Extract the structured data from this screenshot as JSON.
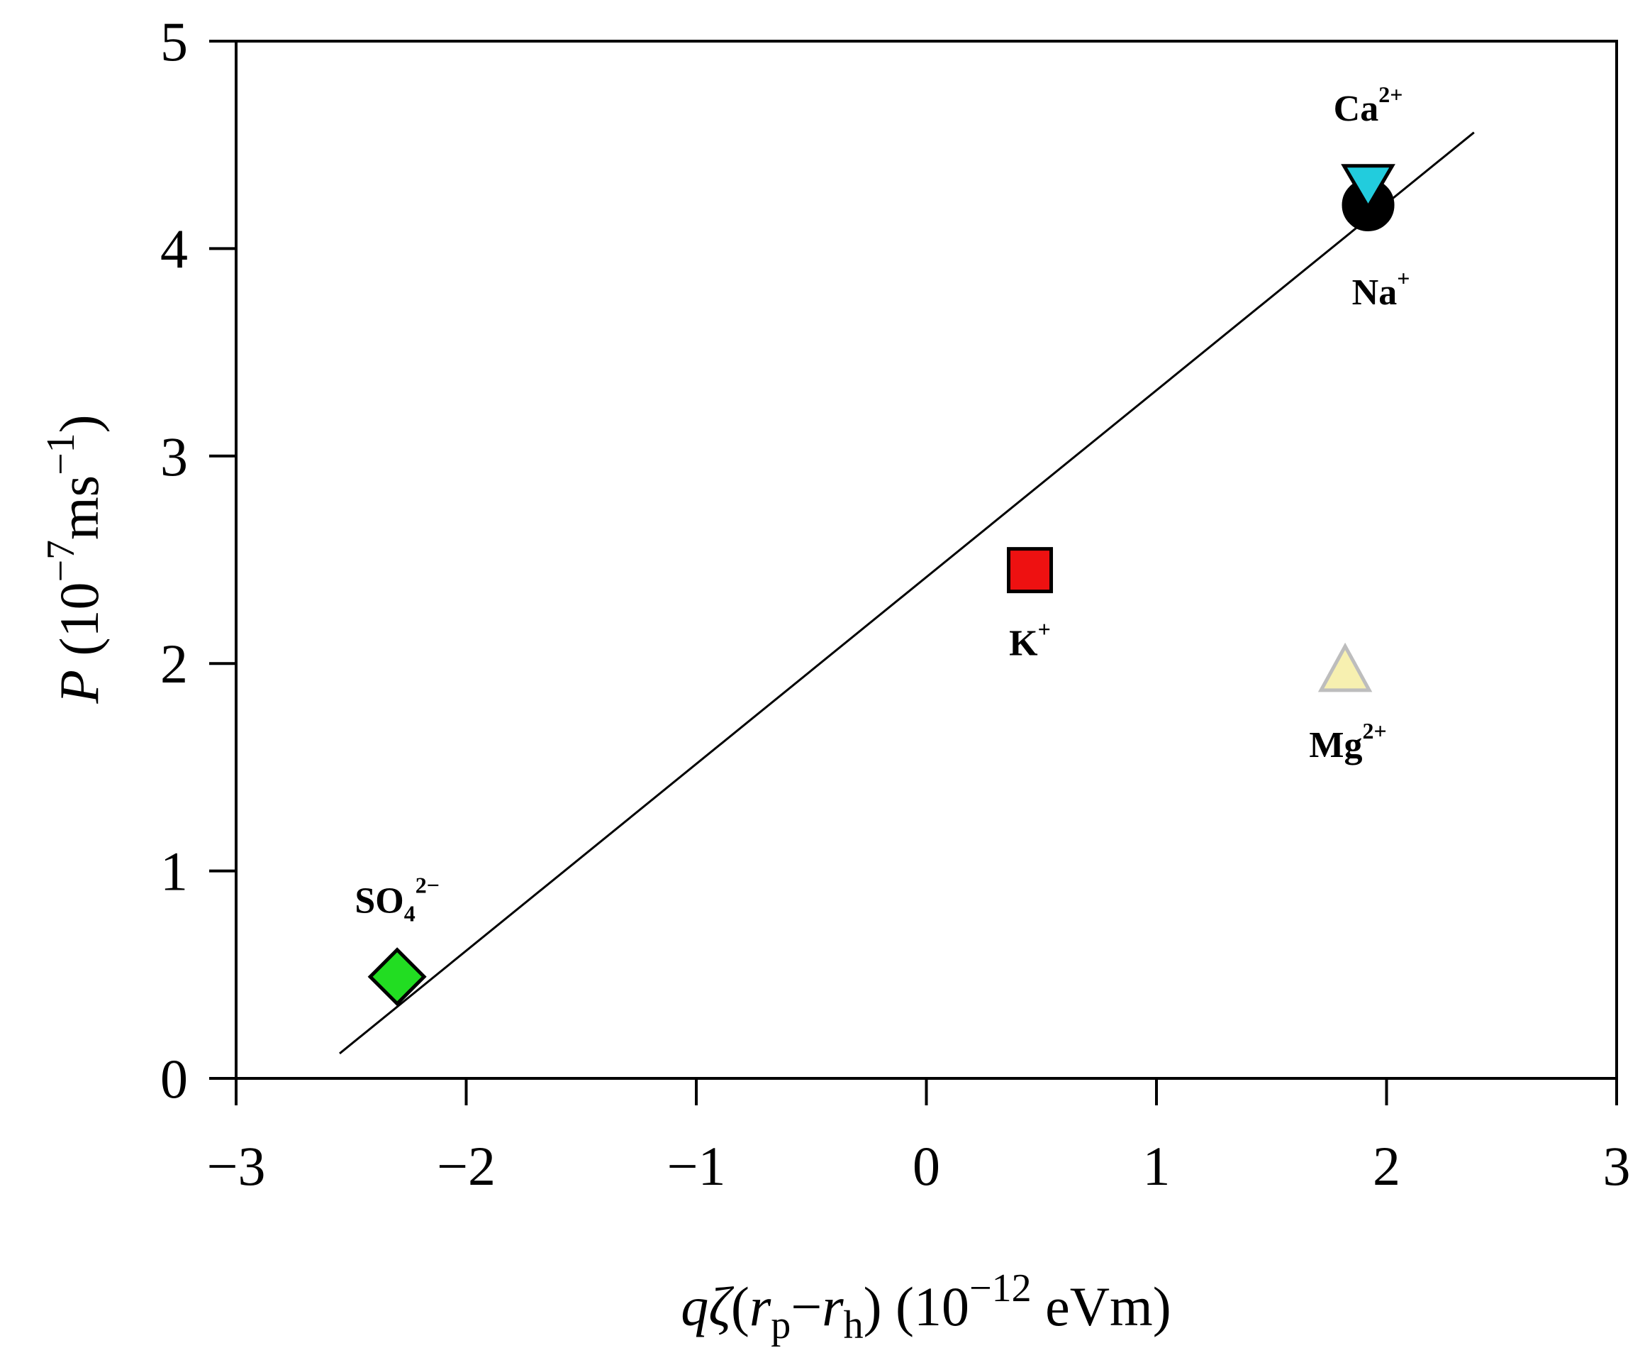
{
  "chart_data": {
    "type": "scatter",
    "title": "",
    "xlabel": {
      "q": "q",
      "zeta": "ζ",
      "open": "(",
      "rp": "r",
      "rp_sub": "p",
      "minus": "−",
      "rh": "r",
      "rh_sub": "h",
      "close": ") (10",
      "exp": "−12",
      "unit": " eVm)"
    },
    "ylabel": {
      "var": "P",
      "prefix": " (10",
      "exp1": "−7",
      "mid": "ms",
      "exp2": "−1",
      "suffix": ")"
    },
    "xlim": [
      -3,
      3
    ],
    "ylim": [
      0,
      5
    ],
    "xticks": [
      -3,
      -2,
      -1,
      0,
      1,
      2,
      3
    ],
    "xtick_labels": [
      "−3",
      "−2",
      "−1",
      "0",
      "1",
      "2",
      "3"
    ],
    "yticks": [
      0,
      1,
      2,
      3,
      4,
      5
    ],
    "ytick_labels": [
      "0",
      "1",
      "2",
      "3",
      "4",
      "5"
    ],
    "grid": false,
    "points": [
      {
        "label": "SO",
        "sub": "4",
        "sup": "2−",
        "x": -2.3,
        "y": 0.49,
        "marker": "diamond",
        "color": "#22dd22"
      },
      {
        "label": "K",
        "sub": "",
        "sup": "+",
        "x": 0.45,
        "y": 2.45,
        "marker": "square",
        "color": "#ee1111"
      },
      {
        "label": "Na",
        "sub": "",
        "sup": "+",
        "x": 1.92,
        "y": 4.21,
        "marker": "circle",
        "color": "#000000"
      },
      {
        "label": "Ca",
        "sub": "",
        "sup": "2+",
        "x": 1.92,
        "y": 4.31,
        "marker": "triangle-down",
        "color": "#22ccdd"
      },
      {
        "label": "Mg",
        "sub": "",
        "sup": "2+",
        "x": 1.82,
        "y": 1.96,
        "marker": "triangle-up",
        "color": "#f7f0b0"
      }
    ],
    "fit_line": {
      "x": [
        -2.55,
        2.38
      ],
      "y": [
        0.12,
        4.56
      ]
    }
  }
}
